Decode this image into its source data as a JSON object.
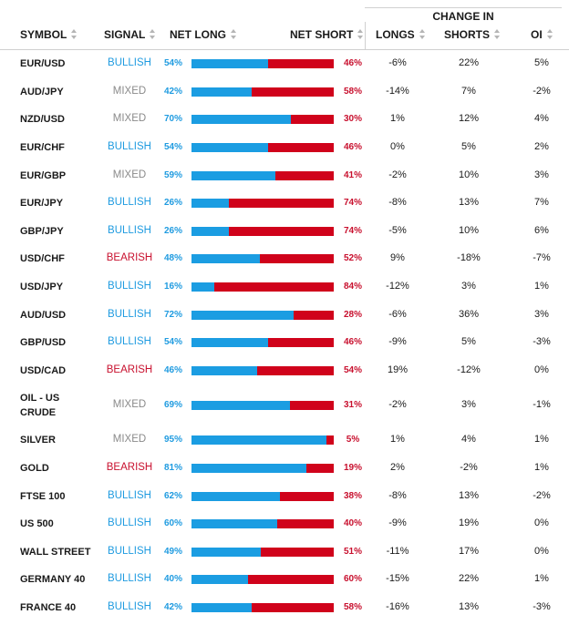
{
  "header": {
    "symbol": "SYMBOL",
    "signal": "SIGNAL",
    "net_long": "NET LONG",
    "net_short": "NET SHORT",
    "change_in": "CHANGE IN",
    "longs": "LONGS",
    "shorts": "SHORTS",
    "oi": "OI"
  },
  "colors": {
    "bullish": "#1f9be0",
    "bearish": "#c8102e",
    "mixed": "#8a8a8a",
    "long_bar": "#1b9de2",
    "short_bar": "#d0021b"
  },
  "rows": [
    {
      "symbol": "EUR/USD",
      "signal": "BULLISH",
      "long_pct": 54,
      "long_label": "54%",
      "short_label": "46%",
      "longs": "-6%",
      "shorts": "22%",
      "oi": "5%"
    },
    {
      "symbol": "AUD/JPY",
      "signal": "MIXED",
      "long_pct": 42,
      "long_label": "42%",
      "short_label": "58%",
      "longs": "-14%",
      "shorts": "7%",
      "oi": "-2%"
    },
    {
      "symbol": "NZD/USD",
      "signal": "MIXED",
      "long_pct": 70,
      "long_label": "70%",
      "short_label": "30%",
      "longs": "1%",
      "shorts": "12%",
      "oi": "4%"
    },
    {
      "symbol": "EUR/CHF",
      "signal": "BULLISH",
      "long_pct": 54,
      "long_label": "54%",
      "short_label": "46%",
      "longs": "0%",
      "shorts": "5%",
      "oi": "2%"
    },
    {
      "symbol": "EUR/GBP",
      "signal": "MIXED",
      "long_pct": 59,
      "long_label": "59%",
      "short_label": "41%",
      "longs": "-2%",
      "shorts": "10%",
      "oi": "3%"
    },
    {
      "symbol": "EUR/JPY",
      "signal": "BULLISH",
      "long_pct": 26,
      "long_label": "26%",
      "short_label": "74%",
      "longs": "-8%",
      "shorts": "13%",
      "oi": "7%"
    },
    {
      "symbol": "GBP/JPY",
      "signal": "BULLISH",
      "long_pct": 26,
      "long_label": "26%",
      "short_label": "74%",
      "longs": "-5%",
      "shorts": "10%",
      "oi": "6%"
    },
    {
      "symbol": "USD/CHF",
      "signal": "BEARISH",
      "long_pct": 48,
      "long_label": "48%",
      "short_label": "52%",
      "longs": "9%",
      "shorts": "-18%",
      "oi": "-7%"
    },
    {
      "symbol": "USD/JPY",
      "signal": "BULLISH",
      "long_pct": 16,
      "long_label": "16%",
      "short_label": "84%",
      "longs": "-12%",
      "shorts": "3%",
      "oi": "1%"
    },
    {
      "symbol": "AUD/USD",
      "signal": "BULLISH",
      "long_pct": 72,
      "long_label": "72%",
      "short_label": "28%",
      "longs": "-6%",
      "shorts": "36%",
      "oi": "3%"
    },
    {
      "symbol": "GBP/USD",
      "signal": "BULLISH",
      "long_pct": 54,
      "long_label": "54%",
      "short_label": "46%",
      "longs": "-9%",
      "shorts": "5%",
      "oi": "-3%"
    },
    {
      "symbol": "USD/CAD",
      "signal": "BEARISH",
      "long_pct": 46,
      "long_label": "46%",
      "short_label": "54%",
      "longs": "19%",
      "shorts": "-12%",
      "oi": "0%"
    },
    {
      "symbol": "OIL - US CRUDE",
      "signal": "MIXED",
      "long_pct": 69,
      "long_label": "69%",
      "short_label": "31%",
      "longs": "-2%",
      "shorts": "3%",
      "oi": "-1%"
    },
    {
      "symbol": "SILVER",
      "signal": "MIXED",
      "long_pct": 95,
      "long_label": "95%",
      "short_label": "5%",
      "longs": "1%",
      "shorts": "4%",
      "oi": "1%"
    },
    {
      "symbol": "GOLD",
      "signal": "BEARISH",
      "long_pct": 81,
      "long_label": "81%",
      "short_label": "19%",
      "longs": "2%",
      "shorts": "-2%",
      "oi": "1%"
    },
    {
      "symbol": "FTSE 100",
      "signal": "BULLISH",
      "long_pct": 62,
      "long_label": "62%",
      "short_label": "38%",
      "longs": "-8%",
      "shorts": "13%",
      "oi": "-2%"
    },
    {
      "symbol": "US 500",
      "signal": "BULLISH",
      "long_pct": 60,
      "long_label": "60%",
      "short_label": "40%",
      "longs": "-9%",
      "shorts": "19%",
      "oi": "0%"
    },
    {
      "symbol": "WALL STREET",
      "signal": "BULLISH",
      "long_pct": 49,
      "long_label": "49%",
      "short_label": "51%",
      "longs": "-11%",
      "shorts": "17%",
      "oi": "0%"
    },
    {
      "symbol": "GERMANY 40",
      "signal": "BULLISH",
      "long_pct": 40,
      "long_label": "40%",
      "short_label": "60%",
      "longs": "-15%",
      "shorts": "22%",
      "oi": "1%"
    },
    {
      "symbol": "FRANCE 40",
      "signal": "BULLISH",
      "long_pct": 42,
      "long_label": "42%",
      "short_label": "58%",
      "longs": "-16%",
      "shorts": "13%",
      "oi": "-3%"
    }
  ]
}
